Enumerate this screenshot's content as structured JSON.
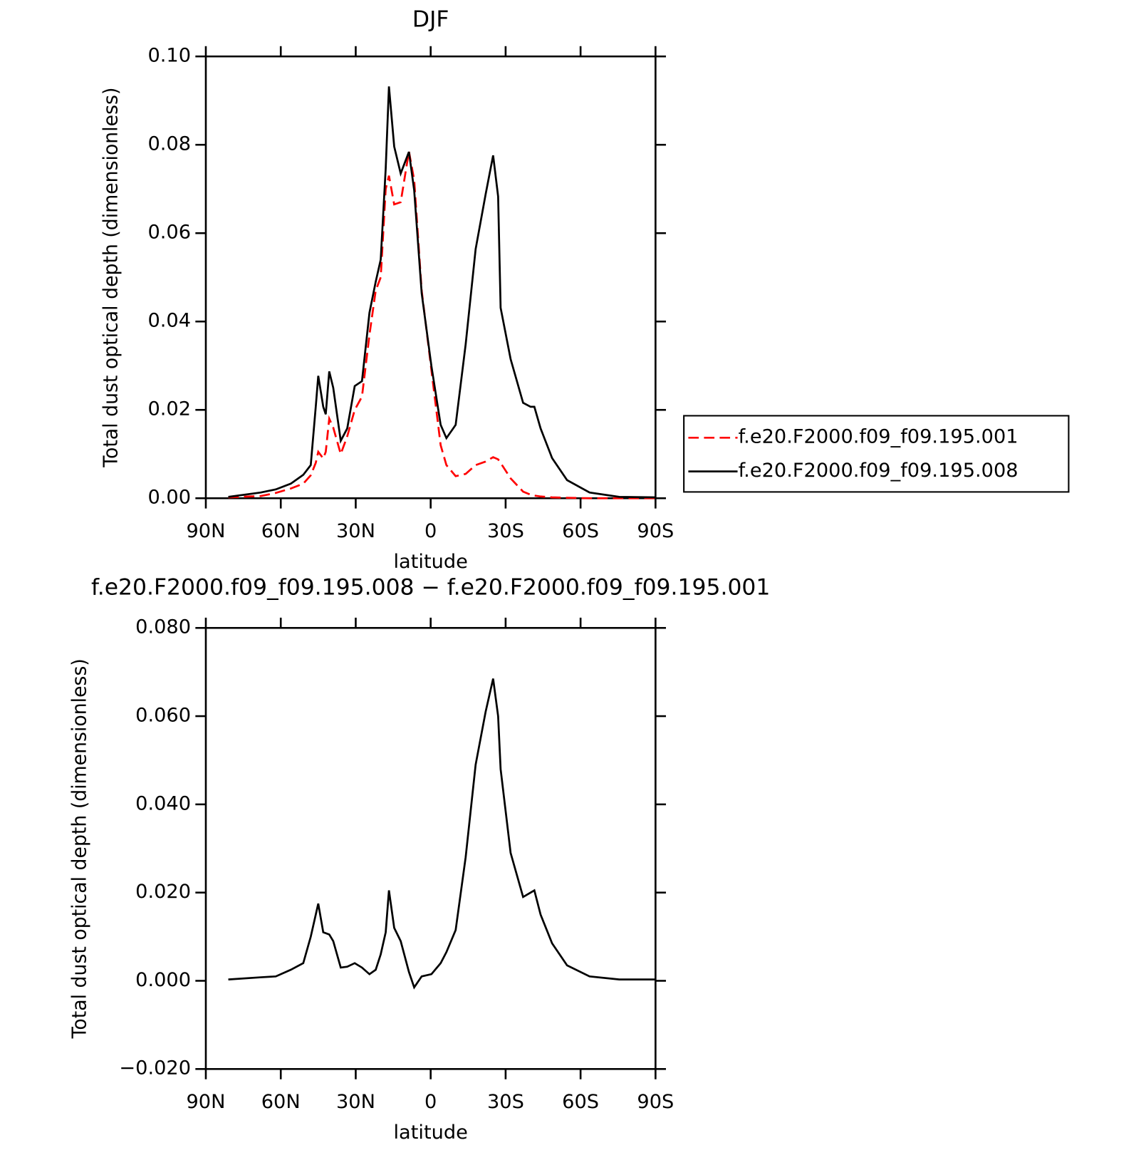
{
  "chart_data": [
    {
      "type": "line",
      "title": "DJF",
      "xlabel": "latitude",
      "ylabel": "Total dust optical depth (dimensionless)",
      "x": [
        81,
        68,
        62,
        56,
        51,
        48,
        46,
        45,
        43,
        42,
        40.6,
        39,
        36,
        33.4,
        30.4,
        27.5,
        24.5,
        22,
        20,
        18,
        16.7,
        14.6,
        12,
        8.7,
        6.6,
        3.6,
        -0.3,
        -4,
        -6.3,
        -10,
        -14,
        -18,
        -22,
        -25,
        -27,
        -28,
        -32,
        -37,
        -40,
        -41.5,
        -44,
        -48.6,
        -54.6,
        -63.6,
        -75.5,
        -90
      ],
      "series": [
        {
          "name": "f.e20.F2000.f09_f09.195.001",
          "color": "#ff0000",
          "dashed": true,
          "values": [
            0.0002,
            0.0005,
            0.0012,
            0.0022,
            0.0033,
            0.0052,
            0.008,
            0.0105,
            0.009,
            0.0105,
            0.018,
            0.016,
            0.01,
            0.014,
            0.02,
            0.023,
            0.037,
            0.047,
            0.05,
            0.07,
            0.073,
            0.0665,
            0.067,
            0.0785,
            0.072,
            0.047,
            0.029,
            0.012,
            0.0075,
            0.005,
            0.0055,
            0.0075,
            0.0083,
            0.0093,
            0.0088,
            0.008,
            0.0045,
            0.0015,
            0.0008,
            0.0006,
            0.0004,
            0.0002,
            0.0001,
            0,
            0,
            0
          ]
        },
        {
          "name": "f.e20.F2000.f09_f09.195.008",
          "color": "#000000",
          "dashed": false,
          "values": [
            0.0003,
            0.0013,
            0.002,
            0.0033,
            0.0053,
            0.0075,
            0.0207,
            0.0277,
            0.0207,
            0.019,
            0.0287,
            0.025,
            0.013,
            0.0158,
            0.0254,
            0.0265,
            0.042,
            0.049,
            0.054,
            0.0746,
            0.0932,
            0.0796,
            0.0735,
            0.0784,
            0.0697,
            0.0464,
            0.0299,
            0.0166,
            0.0136,
            0.0166,
            0.0348,
            0.0564,
            0.0688,
            0.0776,
            0.0683,
            0.0431,
            0.0315,
            0.0216,
            0.0207,
            0.0207,
            0.0158,
            0.0091,
            0.0041,
            0.0013,
            0.0003,
            0.0002
          ]
        }
      ],
      "xlim": [
        90,
        -90
      ],
      "xticks": [
        {
          "value": 90,
          "label": "90N"
        },
        {
          "value": 60,
          "label": "60N"
        },
        {
          "value": 30,
          "label": "30N"
        },
        0,
        {
          "value": -30,
          "label": "30S"
        },
        {
          "value": -60,
          "label": "60S"
        },
        {
          "value": -90,
          "label": "90S"
        }
      ],
      "ylim": [
        0,
        0.1
      ],
      "yticks": [
        {
          "value": 0,
          "label": "0.00"
        },
        {
          "value": 0.02,
          "label": "0.02"
        },
        {
          "value": 0.04,
          "label": "0.04"
        },
        {
          "value": 0.06,
          "label": "0.06"
        },
        {
          "value": 0.08,
          "label": "0.08"
        },
        {
          "value": 0.1,
          "label": "0.10"
        }
      ],
      "legend": "right"
    },
    {
      "type": "line",
      "title": "f.e20.F2000.f09_f09.195.008 − f.e20.F2000.f09_f09.195.001",
      "xlabel": "latitude",
      "ylabel": "Total dust optical depth (dimensionless)",
      "x": [
        81,
        68,
        62,
        56,
        51,
        48,
        45,
        43,
        40.6,
        39,
        36,
        33.4,
        30.4,
        27.5,
        24.5,
        22,
        20,
        18,
        16.7,
        14.6,
        12,
        8.7,
        6.6,
        3.6,
        -0.3,
        -4,
        -6.3,
        -10,
        -14,
        -18,
        -22,
        -25,
        -27,
        -28,
        -32,
        -37,
        -40,
        -41.5,
        -44,
        -48.6,
        -54.6,
        -63.6,
        -75.5,
        -90
      ],
      "series": [
        {
          "color": "#000000",
          "dashed": false,
          "values": [
            0.0003,
            0.0008,
            0.001,
            0.0025,
            0.004,
            0.01,
            0.0175,
            0.011,
            0.0105,
            0.009,
            0.003,
            0.0032,
            0.004,
            0.003,
            0.0015,
            0.0025,
            0.006,
            0.011,
            0.0205,
            0.012,
            0.009,
            0.002,
            -0.0015,
            0.001,
            0.0015,
            0.004,
            0.0065,
            0.0115,
            0.028,
            0.049,
            0.061,
            0.0685,
            0.06,
            0.048,
            0.029,
            0.019,
            0.02,
            0.0205,
            0.015,
            0.0085,
            0.0035,
            0.001,
            0.0003,
            0.0003
          ]
        }
      ],
      "xlim": [
        90,
        -90
      ],
      "xticks": [
        {
          "value": 90,
          "label": "90N"
        },
        {
          "value": 60,
          "label": "60N"
        },
        {
          "value": 30,
          "label": "30N"
        },
        0,
        {
          "value": -30,
          "label": "30S"
        },
        {
          "value": -60,
          "label": "60S"
        },
        {
          "value": -90,
          "label": "90S"
        }
      ],
      "ylim": [
        -0.02,
        0.08
      ],
      "yticks": [
        {
          "value": -0.02,
          "label": "−0.020"
        },
        {
          "value": 0,
          "label": "0.000"
        },
        {
          "value": 0.02,
          "label": "0.020"
        },
        {
          "value": 0.04,
          "label": "0.040"
        },
        {
          "value": 0.06,
          "label": "0.060"
        },
        {
          "value": 0.08,
          "label": "0.080"
        }
      ]
    }
  ]
}
